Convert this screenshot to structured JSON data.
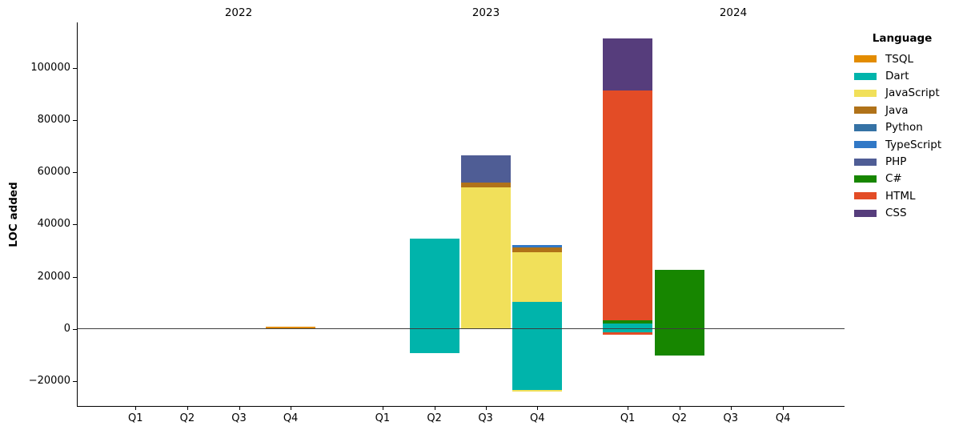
{
  "figure": {
    "ylabel": "LOC added",
    "year_labels": [
      "2022",
      "2023",
      "2024"
    ],
    "quarter_labels": [
      "Q1",
      "Q2",
      "Q3",
      "Q4"
    ],
    "ytick_values": [
      100000,
      80000,
      60000,
      40000,
      20000,
      0,
      -20000
    ],
    "ytick_labels": [
      "100000",
      "80000",
      "60000",
      "40000",
      "20000",
      "0",
      "−20000"
    ]
  },
  "legend": {
    "title": "Language",
    "items": [
      {
        "label": "TSQL",
        "color": "#E38C00"
      },
      {
        "label": "Dart",
        "color": "#00B4AB"
      },
      {
        "label": "JavaScript",
        "color": "#F1E05A"
      },
      {
        "label": "Java",
        "color": "#B07219"
      },
      {
        "label": "Python",
        "color": "#3572A5"
      },
      {
        "label": "TypeScript",
        "color": "#3178C6"
      },
      {
        "label": "PHP",
        "color": "#4F5D95"
      },
      {
        "label": "C#",
        "color": "#178600"
      },
      {
        "label": "HTML",
        "color": "#E34C26"
      },
      {
        "label": "CSS",
        "color": "#563D7C"
      }
    ]
  },
  "chart_data": {
    "type": "bar",
    "stacked": true,
    "title": "",
    "xlabel": "",
    "ylabel": "LOC added",
    "ylim": [
      -29500,
      117400
    ],
    "grid": false,
    "legend_position": "upper right",
    "legend_title": "Language",
    "categories": [
      "2022 Q1",
      "2022 Q2",
      "2022 Q3",
      "2022 Q4",
      "2023 Q1",
      "2023 Q2",
      "2023 Q3",
      "2023 Q4",
      "2024 Q1",
      "2024 Q2",
      "2024 Q3",
      "2024 Q4"
    ],
    "series": [
      {
        "name": "TSQL",
        "color": "#E38C00",
        "values": [
          0,
          0,
          0,
          800,
          0,
          0,
          0,
          0,
          0,
          0,
          0,
          0
        ],
        "negative_values": [
          0,
          0,
          0,
          0,
          0,
          0,
          0,
          0,
          0,
          0,
          0,
          0
        ]
      },
      {
        "name": "Dart",
        "color": "#00B4AB",
        "values": [
          0,
          0,
          0,
          0,
          0,
          34500,
          0,
          10400,
          2100,
          0,
          0,
          0
        ],
        "negative_values": [
          0,
          0,
          0,
          0,
          0,
          -9200,
          0,
          -23500,
          -1400,
          0,
          0,
          0
        ]
      },
      {
        "name": "JavaScript",
        "color": "#F1E05A",
        "values": [
          0,
          0,
          0,
          0,
          0,
          0,
          54300,
          19000,
          0,
          0,
          0,
          0
        ],
        "negative_values": [
          0,
          0,
          0,
          0,
          0,
          0,
          0,
          -600,
          0,
          0,
          0,
          0
        ]
      },
      {
        "name": "Java",
        "color": "#B07219",
        "values": [
          0,
          0,
          0,
          0,
          0,
          0,
          1700,
          1800,
          0,
          0,
          0,
          0
        ],
        "negative_values": [
          0,
          0,
          0,
          0,
          0,
          0,
          0,
          0,
          0,
          0,
          0,
          0
        ]
      },
      {
        "name": "Python",
        "color": "#3572A5",
        "values": [
          0,
          0,
          0,
          0,
          0,
          0,
          0,
          0,
          0,
          0,
          0,
          0
        ],
        "negative_values": [
          0,
          0,
          0,
          0,
          0,
          0,
          0,
          0,
          0,
          0,
          0,
          0
        ]
      },
      {
        "name": "TypeScript",
        "color": "#3178C6",
        "values": [
          0,
          0,
          0,
          0,
          0,
          0,
          0,
          900,
          0,
          0,
          0,
          0
        ],
        "negative_values": [
          0,
          0,
          0,
          0,
          0,
          0,
          0,
          0,
          0,
          0,
          0,
          0
        ]
      },
      {
        "name": "PHP",
        "color": "#4F5D95",
        "values": [
          0,
          0,
          0,
          0,
          0,
          0,
          10400,
          0,
          0,
          0,
          0,
          0
        ],
        "negative_values": [
          0,
          0,
          0,
          0,
          0,
          0,
          0,
          0,
          0,
          0,
          0,
          0
        ]
      },
      {
        "name": "C#",
        "color": "#178600",
        "values": [
          0,
          0,
          0,
          0,
          0,
          0,
          0,
          0,
          1300,
          22700,
          0,
          0
        ],
        "negative_values": [
          0,
          0,
          0,
          0,
          0,
          0,
          0,
          0,
          0,
          -10200,
          0,
          0
        ]
      },
      {
        "name": "HTML",
        "color": "#E34C26",
        "values": [
          0,
          0,
          0,
          0,
          0,
          0,
          0,
          0,
          88000,
          0,
          0,
          0
        ],
        "negative_values": [
          0,
          0,
          0,
          0,
          0,
          0,
          0,
          0,
          -800,
          0,
          0,
          0
        ]
      },
      {
        "name": "CSS",
        "color": "#563D7C",
        "values": [
          0,
          0,
          0,
          0,
          0,
          0,
          0,
          0,
          19900,
          0,
          0,
          0
        ],
        "negative_values": [
          0,
          0,
          0,
          0,
          0,
          0,
          0,
          0,
          0,
          0,
          0,
          0
        ]
      }
    ]
  }
}
